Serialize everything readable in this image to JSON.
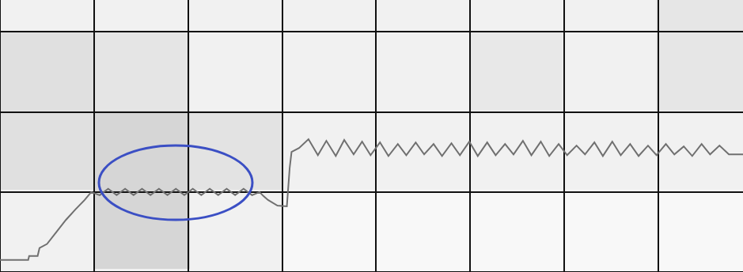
{
  "chart_data": {
    "type": "line",
    "x": [
      0,
      0.3,
      0.31,
      0.4,
      0.42,
      0.5,
      0.6,
      0.7,
      0.8,
      0.9,
      0.97,
      1.06,
      1.15,
      1.24,
      1.33,
      1.42,
      1.51,
      1.6,
      1.69,
      1.78,
      1.87,
      1.96,
      2.05,
      2.14,
      2.23,
      2.32,
      2.41,
      2.5,
      2.59,
      2.68,
      2.76,
      2.8,
      2.85,
      2.95,
      3.05,
      3.08,
      3.1,
      3.18,
      3.28,
      3.38,
      3.47,
      3.57,
      3.66,
      3.76,
      3.85,
      3.94,
      4.04,
      4.13,
      4.23,
      4.32,
      4.42,
      4.51,
      4.61,
      4.7,
      4.8,
      4.89,
      4.99,
      5.08,
      5.18,
      5.27,
      5.37,
      5.46,
      5.56,
      5.65,
      5.75,
      5.84,
      5.94,
      6.03,
      6.13,
      6.22,
      6.32,
      6.41,
      6.51,
      6.6,
      6.7,
      6.79,
      6.89,
      6.98,
      7.08,
      7.17,
      7.27,
      7.36,
      7.46,
      7.55,
      7.65,
      7.75,
      7.9
    ],
    "values": [
      0.15,
      0.15,
      0.2,
      0.2,
      0.3,
      0.35,
      0.5,
      0.65,
      0.78,
      0.9,
      1.0,
      0.96,
      1.04,
      0.96,
      1.04,
      0.96,
      1.04,
      0.96,
      1.04,
      0.96,
      1.04,
      0.96,
      1.04,
      0.96,
      1.04,
      0.96,
      1.04,
      0.96,
      1.04,
      0.96,
      1.0,
      0.95,
      0.9,
      0.83,
      0.82,
      1.3,
      1.5,
      1.55,
      1.66,
      1.46,
      1.64,
      1.45,
      1.65,
      1.47,
      1.63,
      1.46,
      1.62,
      1.45,
      1.6,
      1.46,
      1.62,
      1.47,
      1.6,
      1.45,
      1.61,
      1.46,
      1.63,
      1.45,
      1.62,
      1.46,
      1.6,
      1.47,
      1.64,
      1.46,
      1.63,
      1.45,
      1.6,
      1.46,
      1.58,
      1.47,
      1.62,
      1.45,
      1.63,
      1.46,
      1.6,
      1.45,
      1.58,
      1.46,
      1.6,
      1.47,
      1.57,
      1.45,
      1.6,
      1.47,
      1.58,
      1.47,
      1.47
    ],
    "color": "#707070",
    "xlim": [
      0,
      7.9
    ],
    "ylim": [
      0,
      3.4
    ],
    "xticks": [
      0,
      1,
      2,
      3,
      4,
      5,
      6,
      7
    ],
    "yticks": [
      0,
      1,
      2,
      3
    ],
    "grid": true,
    "tick_labels": false
  }
}
